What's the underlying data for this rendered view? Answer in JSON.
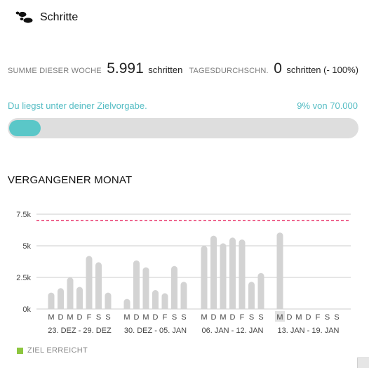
{
  "header": {
    "title": "Schritte",
    "icon": "footsteps-icon"
  },
  "stats": {
    "week_label": "SUMME DIESER WOCHE",
    "week_value": "5.991",
    "week_unit": "schritten",
    "avg_label": "TAGESDURCHSCHN.",
    "avg_value": "0",
    "avg_unit": "schritten (- 100%)"
  },
  "goal": {
    "message": "Du liegst unter deiner Zielvorgabe.",
    "percent_text": "9% von 70.000",
    "progress_fraction": 0.09
  },
  "section_title": "VERGANGENER MONAT",
  "legend": {
    "label": "ZIEL ERREICHT",
    "color": "#8dc63f"
  },
  "colors": {
    "accent": "#5ac7c8",
    "bar": "#d3d3d3",
    "goal_line": "#e8336a",
    "legend": "#8dc63f"
  },
  "chart_data": {
    "type": "bar",
    "y_ticks": [
      "7.5k",
      "5k",
      "2.5k",
      "0k"
    ],
    "y_tick_values": [
      7500,
      5000,
      2500,
      0
    ],
    "ylim": [
      0,
      7500
    ],
    "goal_line": 7000,
    "grid": true,
    "weeks": [
      {
        "label": "23. DEZ - 29. DEZ",
        "days": [
          "M",
          "D",
          "M",
          "D",
          "F",
          "S",
          "S"
        ],
        "values": [
          1300,
          1650,
          2500,
          1750,
          4200,
          3700,
          1300
        ]
      },
      {
        "label": "30. DEZ - 05. JAN",
        "days": [
          "M",
          "D",
          "M",
          "D",
          "F",
          "S",
          "S"
        ],
        "values": [
          800,
          3850,
          3300,
          1500,
          1250,
          3400,
          2150
        ]
      },
      {
        "label": "06. JAN - 12. JAN",
        "days": [
          "M",
          "D",
          "M",
          "D",
          "F",
          "S",
          "S"
        ],
        "values": [
          5000,
          5800,
          5200,
          5650,
          5500,
          2150,
          2850
        ]
      },
      {
        "label": "13. JAN - 19. JAN",
        "days": [
          "M",
          "D",
          "M",
          "D",
          "F",
          "S",
          "S"
        ],
        "values": [
          6050,
          null,
          null,
          null,
          null,
          null,
          null
        ],
        "highlight_day": 0
      }
    ]
  }
}
